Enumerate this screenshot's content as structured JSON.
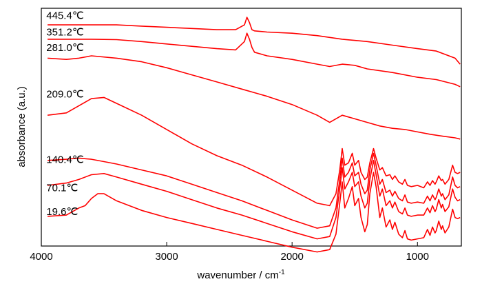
{
  "chart_data": {
    "type": "line",
    "title": "",
    "xlabel": "wavenumber / cm",
    "xlabel_superscript": "-1",
    "ylabel": "absorbance (a.u.)",
    "xlim": [
      4000,
      650
    ],
    "x_reversed": true,
    "x_ticks": [
      {
        "value": 4000,
        "label": "4000"
      },
      {
        "value": 3000,
        "label": "3000"
      },
      {
        "value": 2000,
        "label": "2000"
      },
      {
        "value": 1000,
        "label": "1000"
      }
    ],
    "ylim": [
      0,
      10
    ],
    "y_ticks_shown": false,
    "grid": false,
    "legend": "none",
    "line_color": "#ff0000",
    "series": [
      {
        "name": "445.4℃",
        "x": [
          3950,
          3800,
          3600,
          3400,
          3200,
          3000,
          2800,
          2600,
          2450,
          2380,
          2360,
          2340,
          2320,
          2300,
          2200,
          2000,
          1800,
          1600,
          1400,
          1200,
          1000,
          850,
          700,
          660
        ],
        "y": [
          9.3,
          9.3,
          9.3,
          9.3,
          9.25,
          9.2,
          9.15,
          9.1,
          9.1,
          9.3,
          9.62,
          9.4,
          9.1,
          9.05,
          9.0,
          8.95,
          8.85,
          8.7,
          8.6,
          8.45,
          8.3,
          8.2,
          7.9,
          7.65
        ]
      },
      {
        "name": "351.2℃",
        "x": [
          3950,
          3800,
          3600,
          3400,
          3200,
          3000,
          2800,
          2600,
          2450,
          2380,
          2360,
          2340,
          2320,
          2300,
          2200,
          2000,
          1800,
          1700,
          1600,
          1500,
          1400,
          1200,
          1000,
          850,
          700,
          660
        ],
        "y": [
          8.7,
          8.7,
          8.7,
          8.68,
          8.6,
          8.5,
          8.4,
          8.3,
          8.25,
          8.6,
          8.95,
          8.7,
          8.35,
          8.15,
          8.0,
          7.85,
          7.65,
          7.55,
          7.65,
          7.6,
          7.45,
          7.3,
          7.1,
          7.0,
          6.8,
          6.7
        ]
      },
      {
        "name": "281.0℃",
        "x": [
          3950,
          3800,
          3700,
          3600,
          3400,
          3200,
          3000,
          2800,
          2600,
          2400,
          2300,
          2200,
          2000,
          1800,
          1700,
          1600,
          1500,
          1400,
          1300,
          1200,
          1100,
          1000,
          900,
          800,
          700,
          660
        ],
        "y": [
          7.9,
          7.85,
          7.9,
          8.0,
          7.9,
          7.75,
          7.5,
          7.2,
          6.9,
          6.6,
          6.45,
          6.3,
          5.95,
          5.5,
          5.2,
          5.5,
          5.35,
          5.2,
          5.05,
          4.95,
          4.9,
          4.8,
          4.7,
          4.62,
          4.55,
          4.5
        ]
      },
      {
        "name": "209.0℃",
        "x": [
          3950,
          3800,
          3700,
          3600,
          3500,
          3400,
          3200,
          3000,
          2800,
          2600,
          2400,
          2200,
          2000,
          1800,
          1700,
          1650,
          1620,
          1600,
          1580,
          1550,
          1520,
          1500,
          1470,
          1450,
          1420,
          1400,
          1380,
          1350,
          1330,
          1300,
          1280,
          1250,
          1220,
          1200,
          1180,
          1150,
          1120,
          1100,
          1080,
          1050,
          1000,
          950,
          920,
          900,
          880,
          860,
          850,
          830,
          810,
          800,
          780,
          750,
          720,
          700,
          680,
          660
        ],
        "y": [
          5.5,
          5.6,
          5.9,
          6.2,
          6.25,
          6.0,
          5.5,
          4.9,
          4.3,
          3.8,
          3.4,
          2.9,
          2.35,
          1.8,
          1.7,
          2.2,
          3.2,
          4.1,
          3.4,
          3.5,
          3.9,
          3.4,
          3.6,
          3.1,
          2.8,
          2.9,
          3.5,
          4.1,
          3.7,
          3.2,
          3.3,
          2.95,
          3.0,
          2.8,
          2.95,
          2.7,
          2.6,
          2.8,
          2.55,
          2.5,
          2.55,
          2.45,
          2.7,
          2.55,
          2.75,
          2.6,
          2.7,
          2.95,
          2.75,
          2.8,
          2.6,
          2.8,
          3.4,
          3.1,
          3.05,
          3.1
        ]
      },
      {
        "name": "140.4℃",
        "x": [
          3950,
          3800,
          3700,
          3600,
          3500,
          3400,
          3200,
          3000,
          2800,
          2600,
          2400,
          2200,
          2000,
          1800,
          1700,
          1650,
          1620,
          1600,
          1580,
          1550,
          1520,
          1500,
          1470,
          1450,
          1420,
          1400,
          1380,
          1350,
          1330,
          1300,
          1280,
          1250,
          1220,
          1200,
          1180,
          1150,
          1120,
          1100,
          1080,
          1050,
          1000,
          950,
          920,
          900,
          880,
          860,
          850,
          830,
          810,
          800,
          780,
          750,
          720,
          700,
          680,
          660
        ],
        "y": [
          3.6,
          3.65,
          3.7,
          3.65,
          3.55,
          3.45,
          3.2,
          2.95,
          2.6,
          2.25,
          1.9,
          1.5,
          1.1,
          0.75,
          0.85,
          1.6,
          2.8,
          3.7,
          2.9,
          3.1,
          3.5,
          2.95,
          3.1,
          2.6,
          2.2,
          2.35,
          3.2,
          3.9,
          3.4,
          2.6,
          2.8,
          2.25,
          2.35,
          2.1,
          2.3,
          2.0,
          1.9,
          2.15,
          1.85,
          1.8,
          1.85,
          1.8,
          2.1,
          1.9,
          2.15,
          1.95,
          2.05,
          2.4,
          2.1,
          2.2,
          1.95,
          2.15,
          2.9,
          2.55,
          2.45,
          2.5
        ]
      },
      {
        "name": "70.1℃",
        "x": [
          3950,
          3800,
          3700,
          3600,
          3500,
          3400,
          3200,
          3000,
          2800,
          2600,
          2400,
          2200,
          2000,
          1800,
          1700,
          1650,
          1620,
          1600,
          1580,
          1550,
          1520,
          1500,
          1470,
          1450,
          1420,
          1400,
          1380,
          1350,
          1330,
          1300,
          1280,
          1250,
          1220,
          1200,
          1180,
          1150,
          1120,
          1100,
          1080,
          1050,
          1000,
          950,
          920,
          900,
          880,
          860,
          850,
          830,
          810,
          800,
          780,
          750,
          720,
          700,
          680,
          660
        ],
        "y": [
          2.55,
          2.65,
          2.8,
          3.0,
          3.05,
          2.9,
          2.6,
          2.3,
          1.95,
          1.6,
          1.3,
          0.95,
          0.6,
          0.3,
          0.4,
          1.2,
          2.4,
          3.3,
          2.4,
          2.7,
          3.1,
          2.5,
          2.7,
          2.1,
          1.6,
          1.8,
          2.8,
          3.6,
          3.0,
          2.1,
          2.4,
          1.7,
          1.9,
          1.6,
          1.85,
          1.45,
          1.35,
          1.6,
          1.3,
          1.25,
          1.3,
          1.3,
          1.6,
          1.4,
          1.7,
          1.45,
          1.55,
          1.95,
          1.6,
          1.75,
          1.45,
          1.65,
          2.4,
          2.05,
          1.9,
          1.95
        ]
      },
      {
        "name": "19.6℃",
        "x": [
          3950,
          3800,
          3700,
          3650,
          3600,
          3550,
          3500,
          3400,
          3200,
          3000,
          2800,
          2600,
          2400,
          2200,
          2000,
          1800,
          1700,
          1650,
          1620,
          1600,
          1580,
          1550,
          1520,
          1500,
          1470,
          1450,
          1420,
          1400,
          1380,
          1350,
          1330,
          1300,
          1280,
          1250,
          1220,
          1200,
          1180,
          1150,
          1120,
          1100,
          1080,
          1050,
          1000,
          950,
          920,
          900,
          880,
          860,
          850,
          830,
          810,
          800,
          780,
          750,
          720,
          700,
          680,
          660
        ],
        "y": [
          1.25,
          1.3,
          1.6,
          1.7,
          2.0,
          2.2,
          2.2,
          1.9,
          1.5,
          1.2,
          0.95,
          0.7,
          0.45,
          0.2,
          -0.05,
          -0.25,
          -0.15,
          0.5,
          1.8,
          2.7,
          1.6,
          2.0,
          2.5,
          1.7,
          2.0,
          1.2,
          0.6,
          0.9,
          2.2,
          3.1,
          2.5,
          1.2,
          1.6,
          0.8,
          1.1,
          0.7,
          1.0,
          0.5,
          0.35,
          0.65,
          0.3,
          0.25,
          0.3,
          0.35,
          0.7,
          0.45,
          0.8,
          0.55,
          0.65,
          1.05,
          0.7,
          0.85,
          0.55,
          0.8,
          1.55,
          1.2,
          1.15,
          1.2
        ]
      }
    ],
    "annotations": [
      {
        "text": "445.4℃",
        "x": 3960,
        "y": 9.55
      },
      {
        "text": "351.2℃",
        "x": 3960,
        "y": 8.85
      },
      {
        "text": "281.0℃",
        "x": 3960,
        "y": 8.2
      },
      {
        "text": "209.0℃",
        "x": 3960,
        "y": 6.25
      },
      {
        "text": "140.4℃",
        "x": 3960,
        "y": 3.5
      },
      {
        "text": "70.1℃",
        "x": 3960,
        "y": 2.3
      },
      {
        "text": "19.6℃",
        "x": 3960,
        "y": 1.3
      }
    ]
  }
}
